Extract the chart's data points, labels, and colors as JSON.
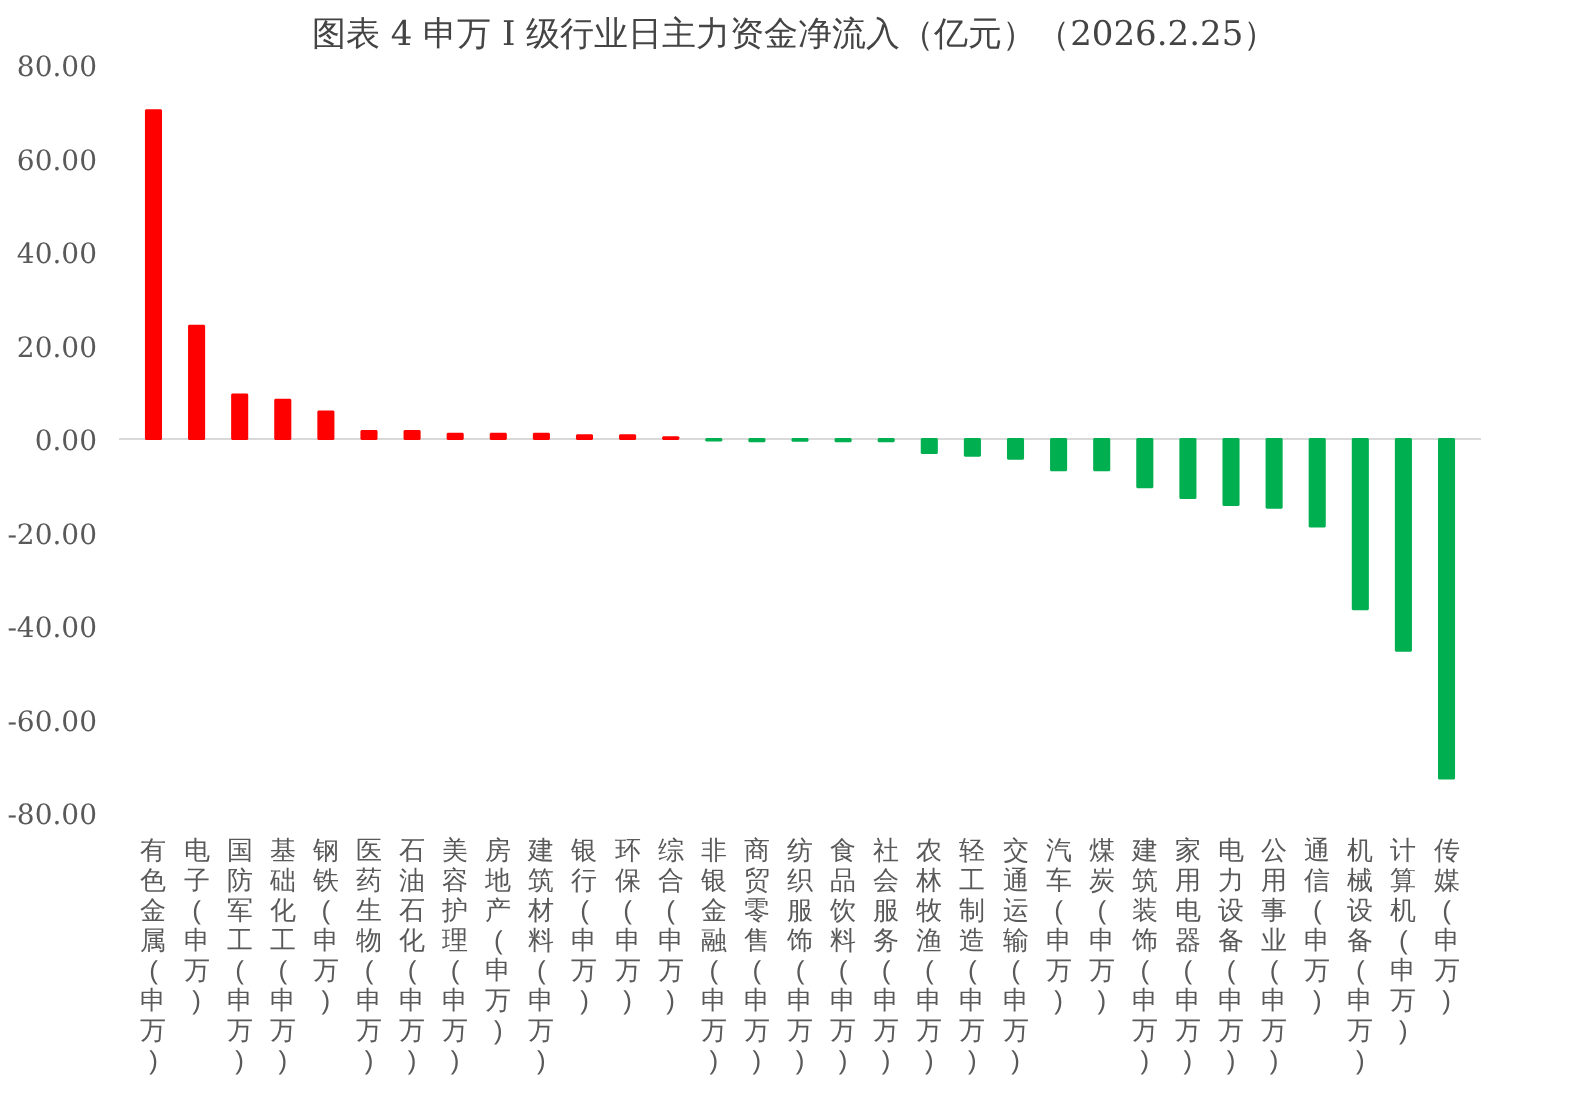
{
  "chart_data": {
    "type": "bar",
    "title": "图表 4  申万 I 级行业日主力资金净流入（亿元）（2026.2.25）",
    "categories": [
      "有色金属(申万)",
      "电子(申万)",
      "国防军工(申万)",
      "基础化工(申万)",
      "钢铁(申万)",
      "医药生物(申万)",
      "石油石化(申万)",
      "美容护理(申万)",
      "房地产(申万)",
      "建筑材料(申万)",
      "银行(申万)",
      "环保(申万)",
      "综合(申万)",
      "非银金融(申万)",
      "商贸零售(申万)",
      "纺织服饰(申万)",
      "食品饮料(申万)",
      "社会服务(申万)",
      "农林牧渔(申万)",
      "轻工制造(申万)",
      "交通运输(申万)",
      "汽车(申万)",
      "煤炭(申万)",
      "建筑装饰(申万)",
      "家用电器(申万)",
      "电力设备(申万)",
      "公用事业(申万)",
      "通信(申万)",
      "机械设备(申万)",
      "计算机(申万)",
      "传媒(申万)"
    ],
    "values": [
      70.3,
      24.2,
      9.5,
      8.4,
      5.9,
      1.7,
      1.7,
      1.1,
      1.1,
      1.1,
      0.8,
      0.8,
      0.4,
      -0.3,
      -0.5,
      -0.4,
      -0.5,
      -0.5,
      -3.0,
      -3.6,
      -4.2,
      -6.7,
      -6.7,
      -10.3,
      -12.6,
      -14.1,
      -14.7,
      -18.7,
      -36.4,
      -45.3,
      -72.6
    ],
    "colors": [
      "#ff0000",
      "#ff0000",
      "#ff0000",
      "#ff0000",
      "#ff0000",
      "#ff0000",
      "#ff0000",
      "#ff0000",
      "#ff0000",
      "#ff0000",
      "#ff0000",
      "#ff0000",
      "#ff0000",
      "#00b050",
      "#00b050",
      "#00b050",
      "#00b050",
      "#00b050",
      "#00b050",
      "#00b050",
      "#00b050",
      "#00b050",
      "#00b050",
      "#00b050",
      "#00b050",
      "#00b050",
      "#00b050",
      "#00b050",
      "#00b050",
      "#00b050",
      "#00b050"
    ],
    "ylim": [
      -80,
      80
    ],
    "yticks": [
      {
        "value": -80,
        "label": "-80.00"
      },
      {
        "value": -60,
        "label": "-60.00"
      },
      {
        "value": -40,
        "label": "-40.00"
      },
      {
        "value": -20,
        "label": "-20.00"
      },
      {
        "value": 0,
        "label": "0.00"
      },
      {
        "value": 20,
        "label": "20.00"
      },
      {
        "value": 40,
        "label": "40.00"
      },
      {
        "value": 60,
        "label": "60.00"
      },
      {
        "value": 80,
        "label": "80.00"
      }
    ],
    "ref_lines": [
      {
        "axis": "y",
        "value": 0,
        "color": "#d9d9d9"
      }
    ],
    "grid": false
  }
}
